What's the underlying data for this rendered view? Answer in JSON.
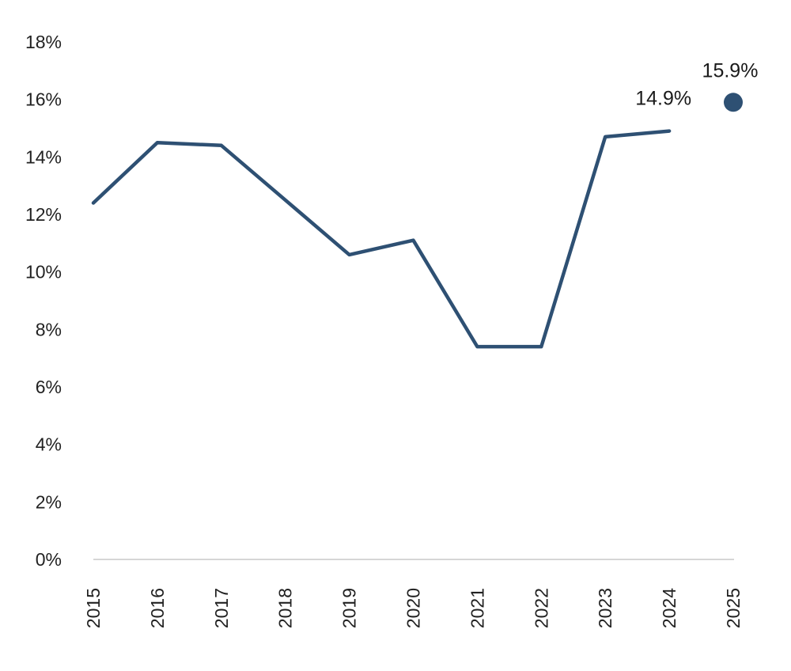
{
  "chart_data": {
    "type": "line",
    "title": "",
    "xlabel": "",
    "ylabel": "",
    "x": [
      "2015",
      "2016",
      "2017",
      "2018",
      "2019",
      "2020",
      "2021",
      "2022",
      "2023",
      "2024"
    ],
    "series": [
      {
        "values": [
          12.4,
          14.5,
          14.4,
          12.5,
          10.6,
          11.1,
          7.4,
          7.4,
          14.7,
          14.9
        ],
        "color": "#2e5073"
      }
    ],
    "projection": {
      "x": "2025",
      "value": 15.9,
      "label": "15.9%",
      "color": "#2e5073"
    },
    "last_value_label": "14.9%",
    "x_ticks": [
      "2015",
      "2016",
      "2017",
      "2018",
      "2019",
      "2020",
      "2021",
      "2022",
      "2023",
      "2024",
      "2025"
    ],
    "y_ticks": [
      "0%",
      "2%",
      "4%",
      "6%",
      "8%",
      "10%",
      "12%",
      "14%",
      "16%",
      "18%"
    ],
    "ylim": [
      0,
      18
    ],
    "grid": false,
    "legend": "none"
  }
}
